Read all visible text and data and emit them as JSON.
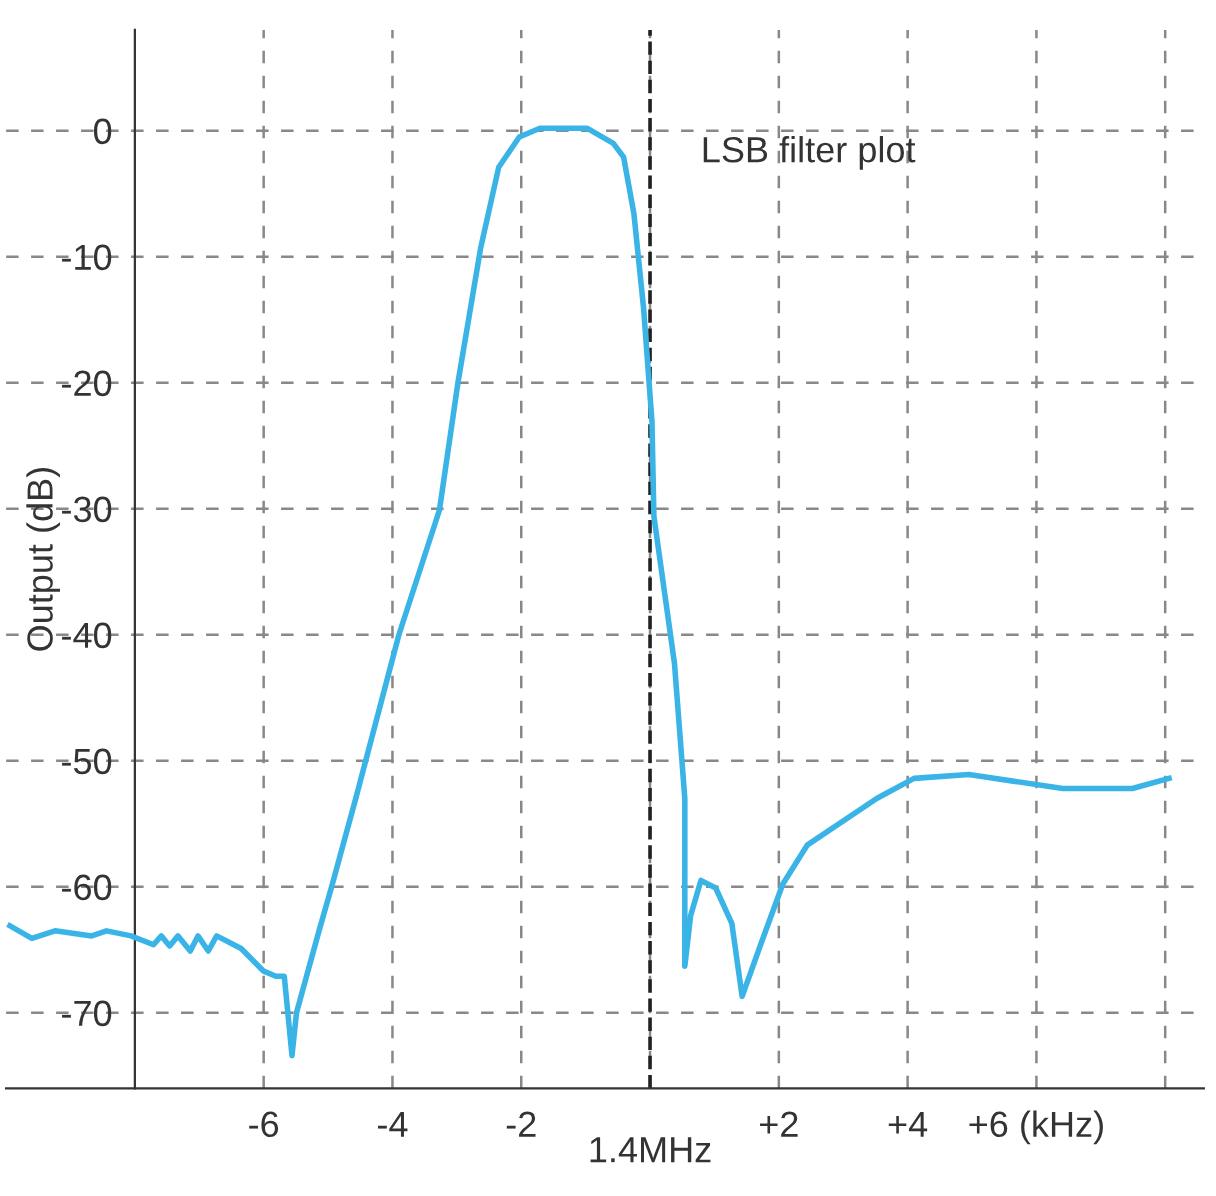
{
  "chart_data": {
    "type": "line",
    "ylabel": "Output (dB)",
    "xlabel": "1.4MHz",
    "annotations": [
      "LSB filter plot"
    ],
    "x": [
      -9.94,
      -9.6,
      -9.24,
      -8.67,
      -8.44,
      -8.06,
      -7.71,
      -7.59,
      -7.46,
      -7.33,
      -7.14,
      -7.02,
      -6.86,
      -6.73,
      -6.35,
      -6.0,
      -5.81,
      -5.68,
      -5.56,
      -5.49,
      -5.14,
      -4.95,
      -4.57,
      -3.9,
      -3.27,
      -2.98,
      -2.63,
      -2.35,
      -2.03,
      -1.71,
      -0.98,
      -0.57,
      -0.41,
      -0.25,
      -0.1,
      0.03,
      0.06,
      0.38,
      0.54,
      0.54,
      0.63,
      0.79,
      1.02,
      1.27,
      1.43,
      1.71,
      2.06,
      2.44,
      3.52,
      4.1,
      4.95,
      6.41,
      7.49,
      8.06
    ],
    "series": [
      {
        "color": "#3ab4e6",
        "values": [
          -63.1,
          -64.1,
          -63.5,
          -63.9,
          -63.5,
          -63.9,
          -64.6,
          -63.9,
          -64.7,
          -63.9,
          -65.1,
          -63.9,
          -65.1,
          -63.9,
          -64.9,
          -66.7,
          -67.1,
          -67.1,
          -73.4,
          -70.0,
          -63.5,
          -60.1,
          -53.0,
          -40.0,
          -30.1,
          -19.9,
          -9.3,
          -2.9,
          -0.5,
          0.2,
          0.2,
          -1.0,
          -2.1,
          -6.6,
          -14.1,
          -23.1,
          -30.6,
          -42.3,
          -53.0,
          -66.3,
          -62.3,
          -59.5,
          -60.1,
          -62.9,
          -68.7,
          -64.7,
          -59.8,
          -56.7,
          -53.0,
          -51.4,
          -51.1,
          -52.2,
          -52.2,
          -51.4
        ]
      }
    ],
    "xlim": [
      -10,
      8.6
    ],
    "ylim": [
      -76,
      8
    ],
    "xticks": [
      -6,
      -4,
      -2,
      {
        "value": 0,
        "label": null
      },
      {
        "value": 2,
        "label": "+2"
      },
      {
        "value": 4,
        "label": "+4"
      },
      {
        "value": 6,
        "label": "+6 (kHz)"
      },
      {
        "value": 8,
        "label": null
      }
    ],
    "yticks": [
      0,
      -10,
      -20,
      -30,
      -40,
      -50,
      -60,
      -70
    ],
    "ref_lines": [
      {
        "axis": "x",
        "value": 0,
        "color": "#222222",
        "line_style": "dashed"
      }
    ],
    "grid": true,
    "line_style": "solid",
    "marker": "none",
    "legend": false
  }
}
